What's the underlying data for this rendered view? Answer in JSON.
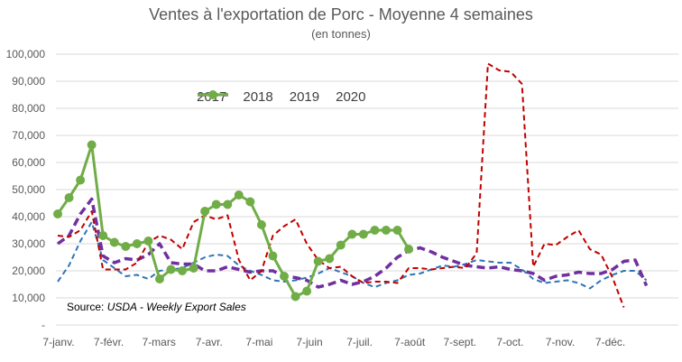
{
  "chart_data": {
    "type": "line",
    "title": "Ventes à l'exportation de Porc - Moyenne 4 semaines",
    "subtitle": "(en tonnes)",
    "xlabel": "",
    "ylabel": "",
    "ylim": [
      0,
      100000
    ],
    "y_ticks": [
      "-",
      "10,000",
      "20,000",
      "30,000",
      "40,000",
      "50,000",
      "60,000",
      "70,000",
      "80,000",
      "90,000",
      "100,000"
    ],
    "x_ticks": [
      "7-janv.",
      "7-févr.",
      "7-mars",
      "7-avr.",
      "7-mai",
      "7-juin",
      "7-juil.",
      "7-août",
      "7-sept.",
      "7-oct.",
      "7-nov.",
      "7-déc."
    ],
    "grid": "horizontal",
    "legend_position": "top-center",
    "source_label": "Source: ",
    "source_text": "USDA - Weekly Export Sales",
    "series": [
      {
        "name": "2017",
        "color": "#2E75B6",
        "style": "dashed-thin",
        "values": [
          16000,
          22000,
          31000,
          38000,
          24000,
          21000,
          18000,
          18500,
          17000,
          20000,
          20500,
          21000,
          23000,
          25000,
          26000,
          25500,
          22000,
          20000,
          18500,
          16500,
          16000,
          16500,
          17500,
          19000,
          21000,
          19500,
          18000,
          15500,
          14000,
          15500,
          16500,
          18500,
          19000,
          20500,
          22000,
          21500,
          22500,
          24000,
          23500,
          23000,
          23000,
          20500,
          17000,
          15500,
          16000,
          16500,
          15500,
          13500,
          16500,
          18500,
          20000,
          20000,
          16500
        ]
      },
      {
        "name": "2018",
        "color": "#7030A0",
        "style": "dashed-thick",
        "values": [
          30000,
          33000,
          41000,
          46500,
          25500,
          23000,
          24500,
          24000,
          26000,
          30000,
          23000,
          22500,
          22500,
          20000,
          20000,
          21500,
          20500,
          19500,
          20000,
          20000,
          18000,
          17500,
          16500,
          14000,
          15000,
          16500,
          15000,
          16000,
          18000,
          21000,
          25000,
          27500,
          28500,
          27000,
          25000,
          23500,
          22000,
          21500,
          21000,
          21500,
          20500,
          20000,
          19000,
          16500,
          18000,
          18500,
          19500,
          19000,
          19000,
          20500,
          23500,
          24000,
          14500
        ]
      },
      {
        "name": "2019",
        "color": "#C00000",
        "style": "dashed",
        "values": [
          33000,
          32500,
          35000,
          42000,
          20500,
          20500,
          20500,
          23000,
          30500,
          33000,
          31500,
          28000,
          38000,
          40500,
          39000,
          40500,
          24000,
          16500,
          20000,
          33000,
          36500,
          39000,
          30000,
          24000,
          21000,
          21500,
          18000,
          15500,
          16000,
          16000,
          15500,
          21000,
          21000,
          20500,
          21000,
          21500,
          21000,
          26500,
          96500,
          94000,
          93500,
          89000,
          21500,
          30000,
          29500,
          32500,
          35000,
          28000,
          26000,
          17500,
          6500
        ]
      },
      {
        "name": "2020",
        "color": "#70AD47",
        "style": "solid-markers",
        "values": [
          41000,
          47000,
          53500,
          66500,
          33000,
          30500,
          29000,
          30000,
          31000,
          17000,
          20500,
          20000,
          21000,
          42000,
          44500,
          44500,
          48000,
          45500,
          37000,
          25500,
          18000,
          10500,
          12500,
          23500,
          24500,
          29500,
          33500,
          33500,
          35000,
          35000,
          35000,
          28000
        ]
      }
    ]
  }
}
